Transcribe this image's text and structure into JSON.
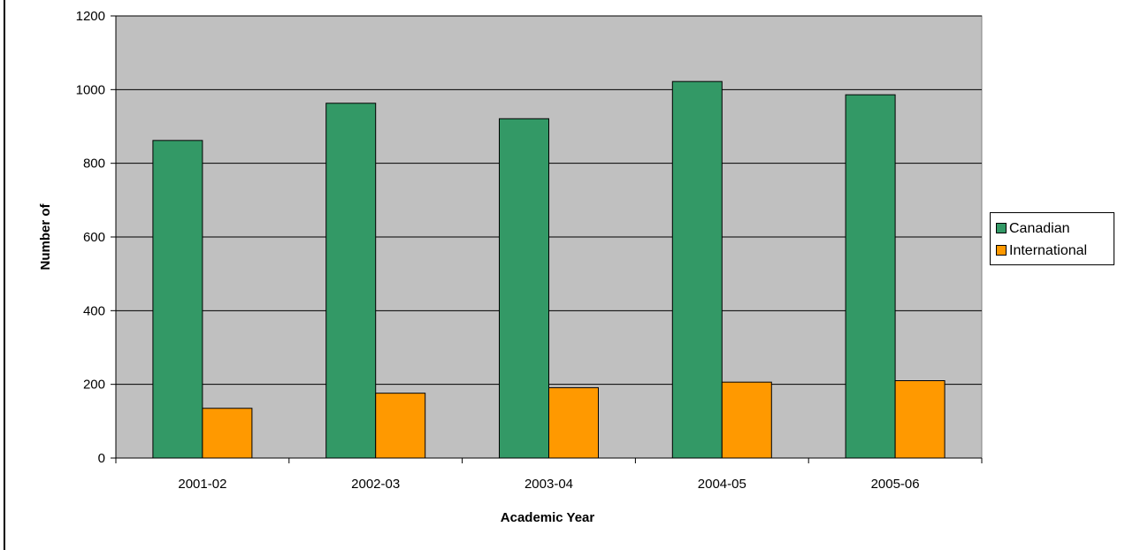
{
  "chart_data": {
    "type": "bar",
    "title": "",
    "xlabel": "Academic Year",
    "ylabel": "Number of",
    "categories": [
      "2001-02",
      "2002-03",
      "2003-04",
      "2004-05",
      "2005-06"
    ],
    "series": [
      {
        "name": "Canadian",
        "color": "#339966",
        "values": [
          862,
          963,
          921,
          1022,
          986
        ]
      },
      {
        "name": "International",
        "color": "#ff9900",
        "values": [
          135,
          176,
          191,
          206,
          210
        ]
      }
    ],
    "ylim": [
      0,
      1200
    ],
    "yticks": [
      0,
      200,
      400,
      600,
      800,
      1000,
      1200
    ],
    "grid": true,
    "plot_background": "#c0c0c0",
    "legend_position": "right"
  }
}
